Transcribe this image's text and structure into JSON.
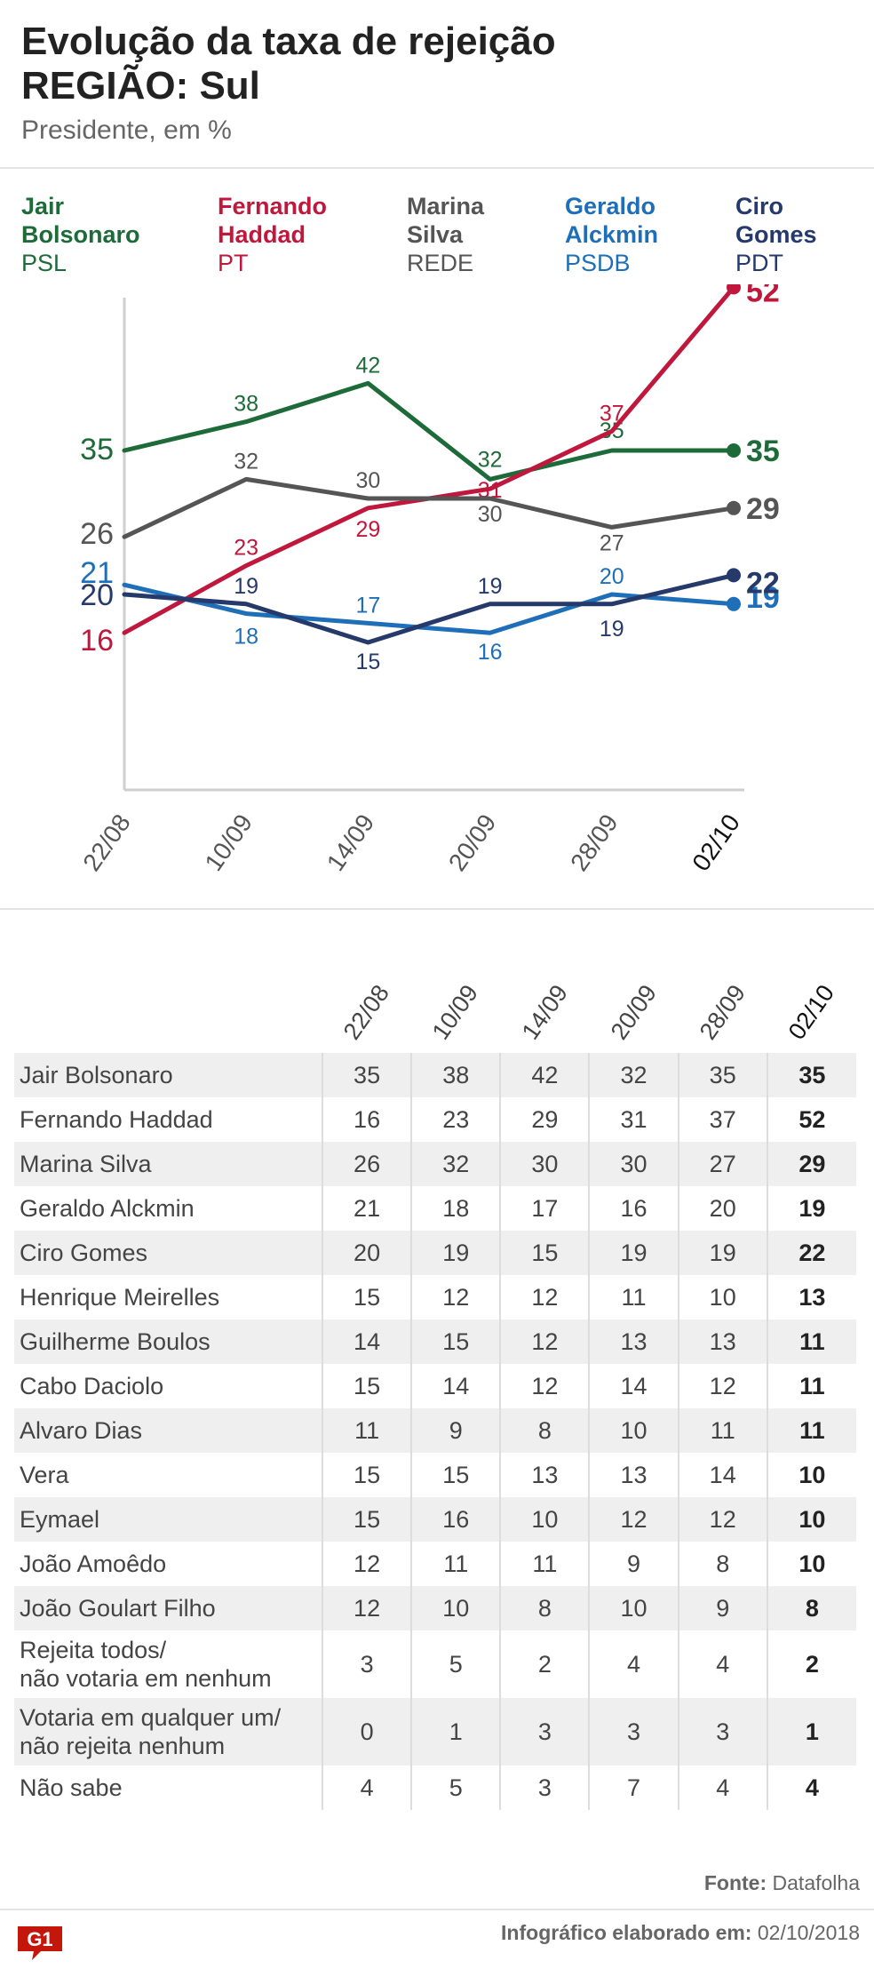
{
  "header": {
    "title_line1": "Evolução da taxa de rejeição",
    "title_line2": "REGIÃO: Sul",
    "subtitle": "Presidente, em %"
  },
  "legend": [
    {
      "name_line1": "Jair",
      "name_line2": "Bolsonaro",
      "party": "PSL",
      "color": "#1e6b3a"
    },
    {
      "name_line1": "Fernando",
      "name_line2": "Haddad",
      "party": "PT",
      "color": "#c0183c"
    },
    {
      "name_line1": "Marina",
      "name_line2": "Silva",
      "party": "REDE",
      "color": "#555555"
    },
    {
      "name_line1": "Geraldo",
      "name_line2": "Alckmin",
      "party": "PSDB",
      "color": "#1f6fb8"
    },
    {
      "name_line1": "Ciro",
      "name_line2": "Gomes",
      "party": "PDT",
      "color": "#253a6b"
    }
  ],
  "chart_data": {
    "type": "line",
    "x": [
      "22/08",
      "10/09",
      "14/09",
      "20/09",
      "28/09",
      "02/10"
    ],
    "ylim": [
      0,
      60
    ],
    "grid": false,
    "series": [
      {
        "name": "Jair Bolsonaro",
        "color": "#1e6b3a",
        "values": [
          35,
          38,
          42,
          32,
          35,
          35
        ]
      },
      {
        "name": "Fernando Haddad",
        "color": "#c0183c",
        "values": [
          16,
          23,
          29,
          31,
          37,
          52
        ]
      },
      {
        "name": "Marina Silva",
        "color": "#555555",
        "values": [
          26,
          32,
          30,
          30,
          27,
          29
        ]
      },
      {
        "name": "Geraldo Alckmin",
        "color": "#1f6fb8",
        "values": [
          21,
          18,
          17,
          16,
          20,
          19
        ]
      },
      {
        "name": "Ciro Gomes",
        "color": "#253a6b",
        "values": [
          20,
          19,
          15,
          19,
          19,
          22
        ]
      }
    ]
  },
  "table": {
    "columns": [
      "22/08",
      "10/09",
      "14/09",
      "20/09",
      "28/09",
      "02/10"
    ],
    "rows": [
      {
        "name": "Jair Bolsonaro",
        "values": [
          "35",
          "38",
          "42",
          "32",
          "35",
          "35"
        ]
      },
      {
        "name": "Fernando Haddad",
        "values": [
          "16",
          "23",
          "29",
          "31",
          "37",
          "52"
        ]
      },
      {
        "name": "Marina Silva",
        "values": [
          "26",
          "32",
          "30",
          "30",
          "27",
          "29"
        ]
      },
      {
        "name": "Geraldo Alckmin",
        "values": [
          "21",
          "18",
          "17",
          "16",
          "20",
          "19"
        ]
      },
      {
        "name": "Ciro Gomes",
        "values": [
          "20",
          "19",
          "15",
          "19",
          "19",
          "22"
        ]
      },
      {
        "name": "Henrique Meirelles",
        "values": [
          "15",
          "12",
          "12",
          "11",
          "10",
          "13"
        ]
      },
      {
        "name": "Guilherme Boulos",
        "values": [
          "14",
          "15",
          "12",
          "13",
          "13",
          "11"
        ]
      },
      {
        "name": "Cabo Daciolo",
        "values": [
          "15",
          "14",
          "12",
          "14",
          "12",
          "11"
        ]
      },
      {
        "name": "Alvaro Dias",
        "values": [
          "11",
          "9",
          "8",
          "10",
          "11",
          "11"
        ]
      },
      {
        "name": "Vera",
        "values": [
          "15",
          "15",
          "13",
          "13",
          "14",
          "10"
        ]
      },
      {
        "name": "Eymael",
        "values": [
          "15",
          "16",
          "10",
          "12",
          "12",
          "10"
        ]
      },
      {
        "name": "João Amoêdo",
        "values": [
          "12",
          "11",
          "11",
          "9",
          "8",
          "10"
        ]
      },
      {
        "name": "João Goulart Filho",
        "values": [
          "12",
          "10",
          "8",
          "10",
          "9",
          "8"
        ]
      },
      {
        "name_line1": "Rejeita todos/",
        "name_line2": "não votaria em nenhum",
        "values": [
          "3",
          "5",
          "2",
          "4",
          "4",
          "2"
        ]
      },
      {
        "name_line1": "Votaria em qualquer um/",
        "name_line2": "não rejeita nenhum",
        "values": [
          "0",
          "1",
          "3",
          "3",
          "3",
          "1"
        ]
      },
      {
        "name": "Não sabe",
        "values": [
          "4",
          "5",
          "3",
          "7",
          "4",
          "4"
        ]
      }
    ]
  },
  "footer": {
    "source_label": "Fonte:",
    "source_value": "Datafolha",
    "credit_label": "Infográfico elaborado em:",
    "credit_value": "02/10/2018",
    "logo_text": "G1",
    "logo_color": "#c4170c"
  }
}
